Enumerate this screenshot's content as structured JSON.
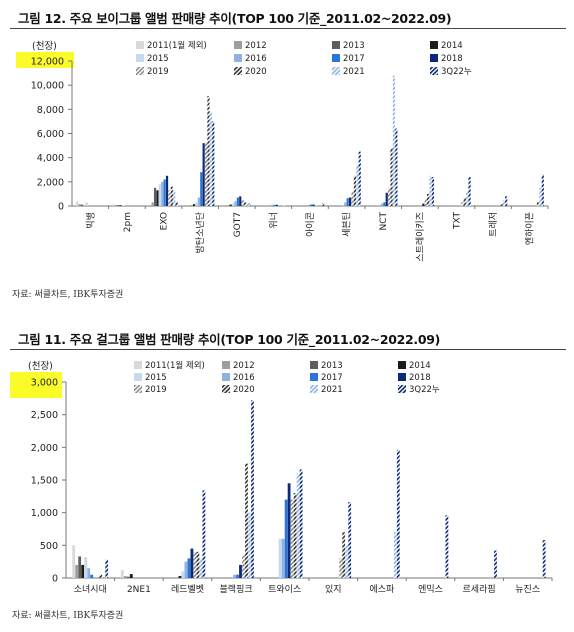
{
  "chart_data": [
    {
      "type": "bar",
      "title": "그림 12. 주요 보이그룹 앨범 판매량 추이(TOP 100 기준_2011.02~2022.09)",
      "unit_label": "(천장)",
      "source": "자료: 써클차트, IBK투자증권",
      "ylim": [
        0,
        12000
      ],
      "yticks": [
        "0",
        "2,000",
        "4,000",
        "6,000",
        "8,000",
        "10,000",
        "12,000"
      ],
      "highlighted_tick": "12,000",
      "category_label_rotation": "vertical",
      "legend_position": "top",
      "categories": [
        "빅뱅",
        "2pm",
        "EXO",
        "방탄소년단",
        "GOT7",
        "위너",
        "아이콘",
        "세븐틴",
        "NCT",
        "스트레이키즈",
        "TXT",
        "트레저",
        "엔하이픈"
      ],
      "series": [
        {
          "name": "2011(1월 제외)",
          "values": [
            400,
            150,
            0,
            0,
            0,
            0,
            0,
            0,
            0,
            0,
            0,
            0,
            0
          ]
        },
        {
          "name": "2012",
          "values": [
            150,
            80,
            300,
            0,
            0,
            0,
            0,
            0,
            0,
            0,
            0,
            0,
            0
          ]
        },
        {
          "name": "2013",
          "values": [
            120,
            80,
            1500,
            50,
            0,
            0,
            0,
            0,
            0,
            0,
            0,
            0,
            0
          ]
        },
        {
          "name": "2014",
          "values": [
            0,
            60,
            1300,
            150,
            120,
            0,
            0,
            0,
            0,
            0,
            0,
            0,
            0
          ]
        },
        {
          "name": "2015",
          "values": [
            300,
            50,
            1800,
            300,
            200,
            0,
            0,
            100,
            0,
            0,
            0,
            0,
            0
          ]
        },
        {
          "name": "2016",
          "values": [
            0,
            0,
            2000,
            700,
            400,
            100,
            100,
            300,
            200,
            0,
            0,
            0,
            0
          ]
        },
        {
          "name": "2017",
          "values": [
            0,
            0,
            2200,
            2800,
            700,
            100,
            120,
            650,
            300,
            0,
            0,
            0,
            0
          ]
        },
        {
          "name": "2018",
          "values": [
            0,
            0,
            2500,
            5200,
            800,
            100,
            120,
            700,
            1100,
            200,
            0,
            0,
            0
          ]
        },
        {
          "name": "2019",
          "values": [
            0,
            0,
            1300,
            5300,
            500,
            0,
            50,
            1200,
            1500,
            600,
            300,
            0,
            0
          ]
        },
        {
          "name": "2020",
          "values": [
            0,
            0,
            1600,
            9100,
            300,
            0,
            0,
            2500,
            4800,
            1000,
            700,
            200,
            300
          ]
        },
        {
          "name": "2021",
          "values": [
            0,
            0,
            1300,
            7800,
            200,
            50,
            0,
            3400,
            10800,
            2500,
            1200,
            500,
            1500
          ]
        },
        {
          "name": "3Q22누",
          "values": [
            0,
            0,
            300,
            7000,
            200,
            0,
            250,
            4500,
            6400,
            2400,
            2400,
            800,
            2600
          ]
        }
      ]
    },
    {
      "type": "bar",
      "title": "그림 11. 주요 걸그룹 앨범 판매량 추이(TOP 100 기준_2011.02~2022.09)",
      "unit_label": "(천장)",
      "source": "자료: 써클차트, IBK투자증권",
      "ylim": [
        0,
        3000
      ],
      "yticks": [
        "0",
        "500",
        "1,000",
        "1,500",
        "2,000",
        "2,500",
        "3,000"
      ],
      "highlighted_tick": "3,000",
      "category_label_rotation": "none",
      "legend_position": "top",
      "categories": [
        "소녀시대",
        "2NE1",
        "레드벨벳",
        "블랙핑크",
        "트와이스",
        "있지",
        "에스파",
        "엔믹스",
        "르세라핌",
        "뉴진스"
      ],
      "series": [
        {
          "name": "2011(1월 제외)",
          "values": [
            500,
            120,
            0,
            0,
            0,
            0,
            0,
            0,
            0,
            0
          ]
        },
        {
          "name": "2012",
          "values": [
            200,
            30,
            0,
            0,
            0,
            0,
            0,
            0,
            0,
            0
          ]
        },
        {
          "name": "2013",
          "values": [
            330,
            20,
            0,
            0,
            0,
            0,
            0,
            0,
            0,
            0
          ]
        },
        {
          "name": "2014",
          "values": [
            200,
            60,
            30,
            0,
            0,
            0,
            0,
            0,
            0,
            0
          ]
        },
        {
          "name": "2015",
          "values": [
            320,
            0,
            100,
            0,
            600,
            0,
            0,
            0,
            0,
            0
          ]
        },
        {
          "name": "2016",
          "values": [
            150,
            0,
            250,
            50,
            600,
            0,
            0,
            0,
            0,
            0
          ]
        },
        {
          "name": "2017",
          "values": [
            50,
            0,
            300,
            50,
            1200,
            0,
            0,
            0,
            0,
            0
          ]
        },
        {
          "name": "2018",
          "values": [
            0,
            0,
            450,
            200,
            1450,
            0,
            0,
            0,
            0,
            0
          ]
        },
        {
          "name": "2019",
          "values": [
            0,
            0,
            400,
            350,
            1200,
            300,
            0,
            0,
            0,
            0
          ]
        },
        {
          "name": "2020",
          "values": [
            50,
            0,
            400,
            1750,
            1300,
            700,
            0,
            0,
            0,
            0
          ]
        },
        {
          "name": "2021",
          "values": [
            0,
            0,
            300,
            1000,
            1600,
            500,
            700,
            0,
            0,
            0
          ]
        },
        {
          "name": "3Q22누",
          "values": [
            280,
            0,
            1340,
            2720,
            1660,
            1160,
            1960,
            960,
            420,
            580
          ]
        }
      ]
    }
  ],
  "series_styles": [
    {
      "name": "2011(1월 제외)",
      "color": "#d9d9d9",
      "pattern": "solid"
    },
    {
      "name": "2012",
      "color": "#9e9e9e",
      "pattern": "solid"
    },
    {
      "name": "2013",
      "color": "#5e5e5e",
      "pattern": "solid"
    },
    {
      "name": "2014",
      "color": "#1c1c1c",
      "pattern": "solid"
    },
    {
      "name": "2015",
      "color": "#c6d9f1",
      "pattern": "solid"
    },
    {
      "name": "2016",
      "color": "#8db3e2",
      "pattern": "solid"
    },
    {
      "name": "2017",
      "color": "#2e74d6",
      "pattern": "solid"
    },
    {
      "name": "2018",
      "color": "#0b2a78",
      "pattern": "solid"
    },
    {
      "name": "2019",
      "color": "#8c8c8c",
      "pattern": "hatch"
    },
    {
      "name": "2020",
      "color": "#333333",
      "pattern": "hatch"
    },
    {
      "name": "2021",
      "color": "#8db3e2",
      "pattern": "hatch"
    },
    {
      "name": "3Q22누",
      "color": "#0b2a78",
      "pattern": "hatch"
    }
  ],
  "highlight_color": "#fbfb2a"
}
